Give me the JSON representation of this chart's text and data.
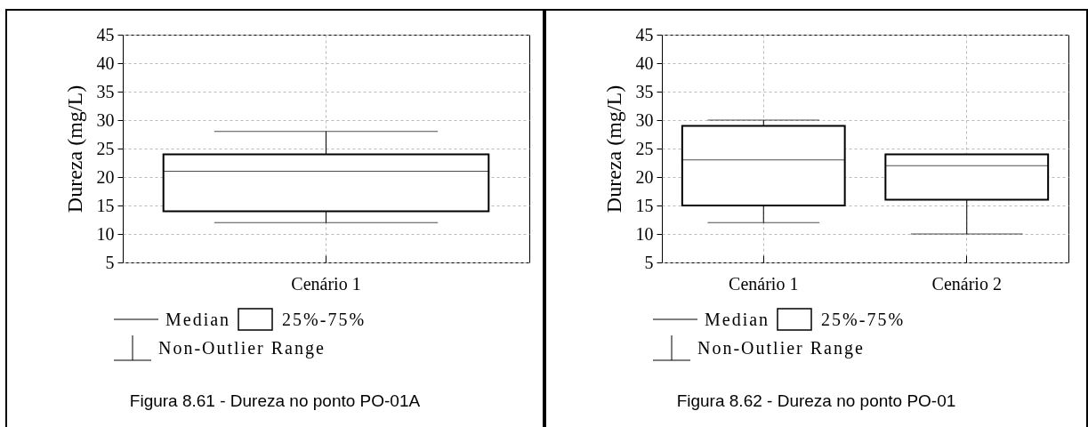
{
  "chart_data": [
    {
      "type": "box",
      "ylabel": "Dureza (mg/L)",
      "categories": [
        "Cenário 1"
      ],
      "boxes": [
        {
          "low": 12,
          "q1": 14,
          "median": 21,
          "q3": 24,
          "high": 28
        }
      ],
      "ylim": [
        5,
        45
      ],
      "yticks": [
        5,
        10,
        15,
        20,
        25,
        30,
        35,
        40,
        45
      ],
      "grid": true,
      "annotations": [
        "Median",
        "25%-75%",
        "Non-Outlier Range",
        "Figura 8.61 - Dureza no ponto PO-01A"
      ]
    },
    {
      "type": "box",
      "ylabel": "Dureza (mg/L)",
      "categories": [
        "Cenário 1",
        "Cenário 2"
      ],
      "boxes": [
        {
          "low": 12,
          "q1": 15,
          "median": 23,
          "q3": 29,
          "high": 30
        },
        {
          "low": 10,
          "q1": 16,
          "median": 22,
          "q3": 24,
          "high": 24
        }
      ],
      "ylim": [
        5,
        45
      ],
      "yticks": [
        5,
        10,
        15,
        20,
        25,
        30,
        35,
        40,
        45
      ],
      "grid": true,
      "annotations": [
        "Median",
        "25%-75%",
        "Non-Outlier Range",
        "Figura 8.62 - Dureza no ponto PO-01"
      ]
    }
  ]
}
